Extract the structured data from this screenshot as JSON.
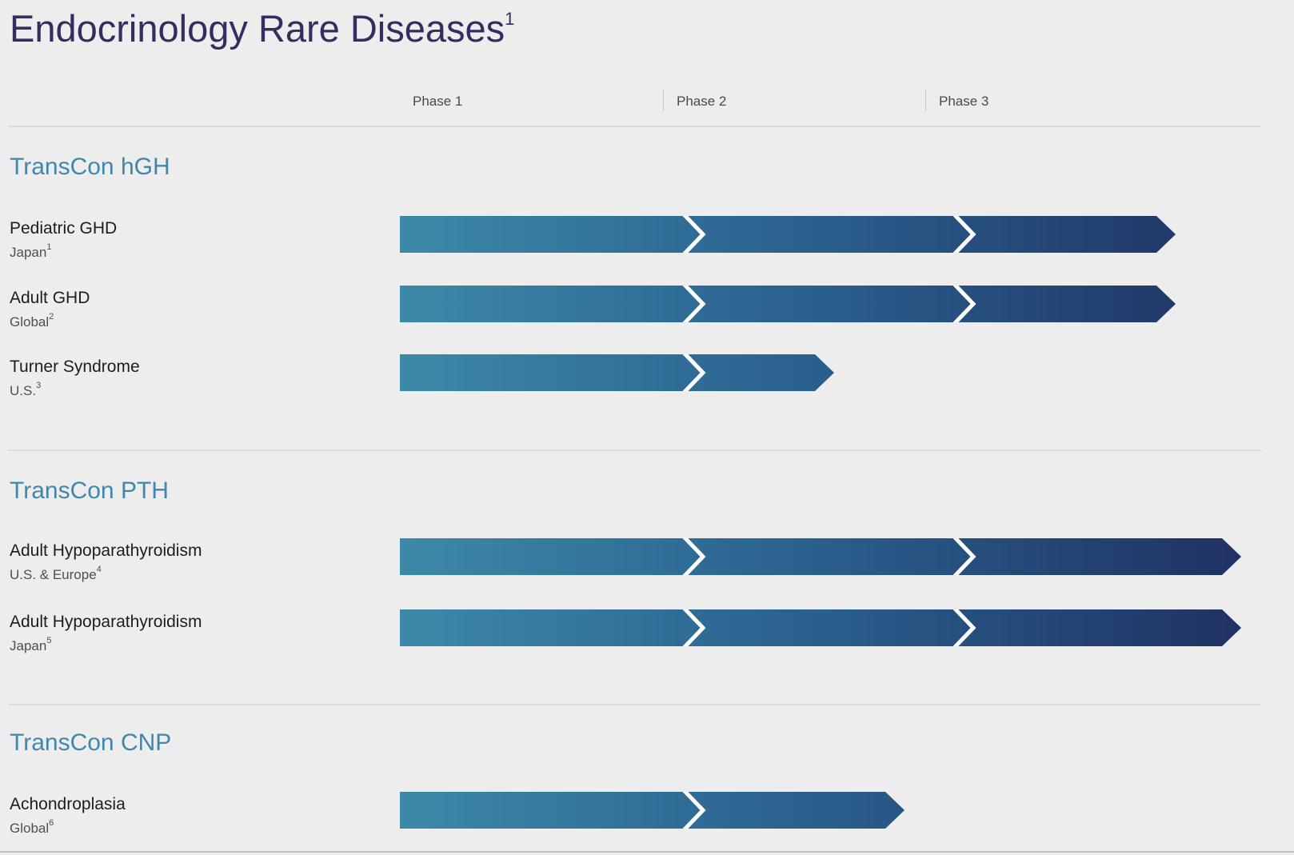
{
  "title": {
    "text": "Endocrinology Rare Diseases",
    "superscript": "1"
  },
  "header": {
    "phases": [
      "Phase 1",
      "Phase 2",
      "Phase 3"
    ]
  },
  "colors": {
    "background": "#ededed",
    "title_text": "#322f60",
    "section_heading": "#4187ab",
    "bar_gradient_start": "#3d89a8",
    "bar_gradient_mid": "#2b6390",
    "bar_gradient_end": "#1f3263",
    "chevron_marker": "#ffffff",
    "divider": "#dcdcdc",
    "row_title_text": "#1d1d1b",
    "row_subtitle_text": "#4f4f4f",
    "phase_label_text": "#4a4a4a"
  },
  "chart_data": {
    "type": "bar",
    "orientation": "horizontal",
    "title": "Endocrinology Rare Diseases",
    "x_axis_columns": [
      "Phase 1",
      "Phase 2",
      "Phase 3"
    ],
    "x_range_phases": [
      0,
      3
    ],
    "grid": false,
    "legend": false,
    "sections": [
      {
        "name": "TransCon hGH",
        "rows": [
          {
            "indication": "Pediatric GHD",
            "region": "Japan",
            "region_superscript": "1",
            "progress_phases": 2.8,
            "track_fraction": 0.922,
            "phase_markers_passed": 2
          },
          {
            "indication": "Adult GHD",
            "region": "Global",
            "region_superscript": "2",
            "progress_phases": 2.8,
            "track_fraction": 0.922,
            "phase_markers_passed": 2
          },
          {
            "indication": "Turner Syndrome",
            "region": "U.S.",
            "region_superscript": "3",
            "progress_phases": 1.65,
            "track_fraction": 0.516,
            "phase_markers_passed": 1
          }
        ]
      },
      {
        "name": "TransCon PTH",
        "rows": [
          {
            "indication": "Adult Hypoparathyroidism",
            "region": "U.S. & Europe",
            "region_superscript": "4",
            "progress_phases": 3.0,
            "track_fraction": 1.0,
            "phase_markers_passed": 2
          },
          {
            "indication": "Adult Hypoparathyroidism",
            "region": "Japan",
            "region_superscript": "5",
            "progress_phases": 3.0,
            "track_fraction": 1.0,
            "phase_markers_passed": 2
          }
        ]
      },
      {
        "name": "TransCon CNP",
        "rows": [
          {
            "indication": "Achondroplasia",
            "region": "Global",
            "region_superscript": "6",
            "progress_phases": 1.9,
            "track_fraction": 0.6,
            "phase_markers_passed": 1
          }
        ]
      }
    ]
  }
}
